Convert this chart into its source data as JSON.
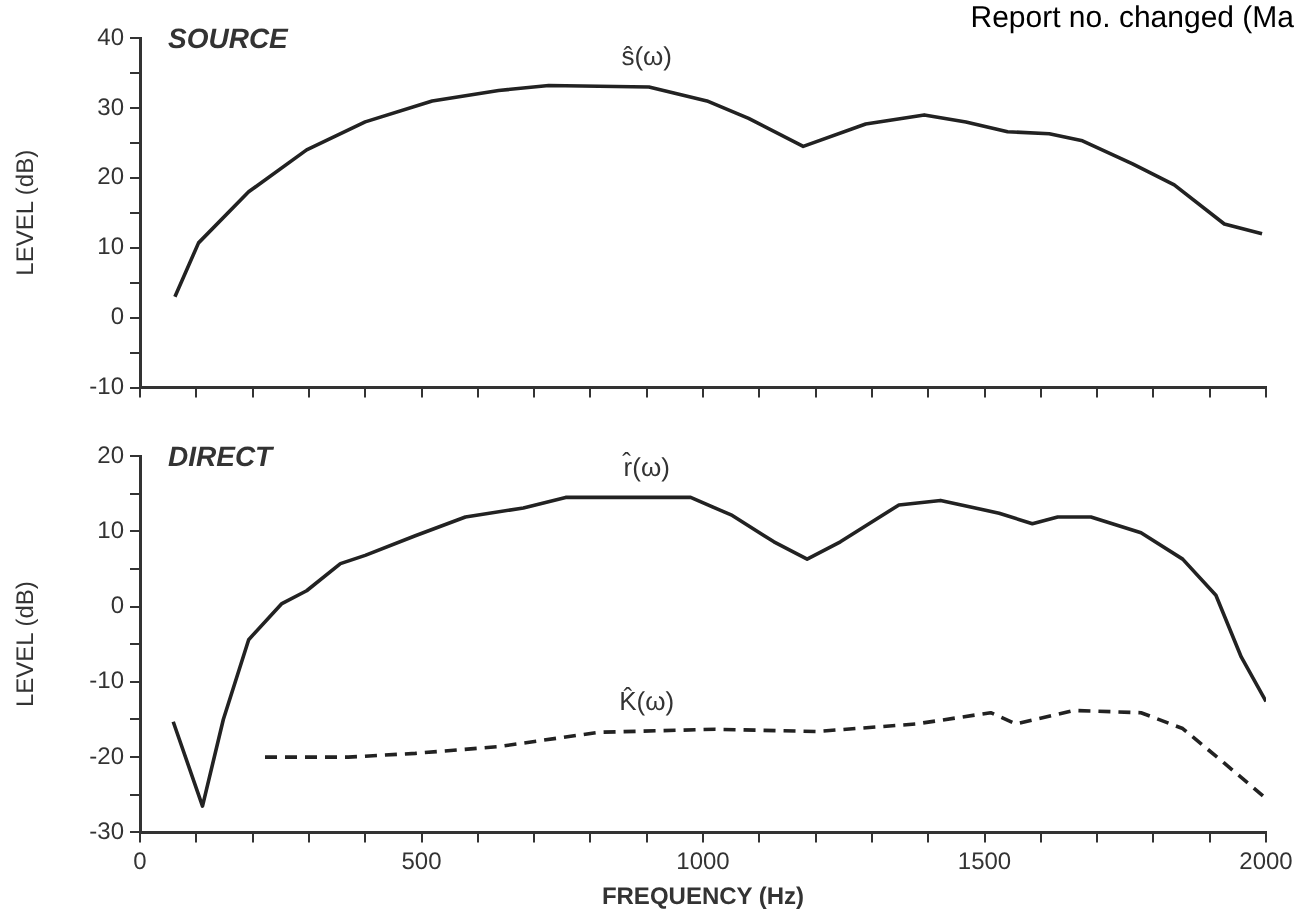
{
  "chart_data": [
    {
      "type": "line",
      "title": "SOURCE",
      "ylabel": "LEVEL (dB)",
      "annotations": [
        "Report no. changed (Ma"
      ],
      "xlim": [
        0,
        2000
      ],
      "xticks": [
        0,
        {
          "value": 100,
          "label": null
        },
        {
          "value": 200,
          "label": null
        },
        {
          "value": 300,
          "label": null
        },
        {
          "value": 400,
          "label": null
        },
        500,
        {
          "value": 600,
          "label": null
        },
        {
          "value": 700,
          "label": null
        },
        {
          "value": 800,
          "label": null
        },
        {
          "value": 900,
          "label": null
        },
        1000,
        {
          "value": 1100,
          "label": null
        },
        {
          "value": 1200,
          "label": null
        },
        {
          "value": 1300,
          "label": null
        },
        {
          "value": 1400,
          "label": null
        },
        1500,
        {
          "value": 1600,
          "label": null
        },
        {
          "value": 1700,
          "label": null
        },
        {
          "value": 1800,
          "label": null
        },
        {
          "value": 1900,
          "label": null
        },
        2000
      ],
      "ylim": [
        -10,
        40
      ],
      "yticks": [
        -10,
        {
          "value": -5,
          "label": null
        },
        0,
        {
          "value": 5,
          "label": null
        },
        10,
        {
          "value": 15,
          "label": null
        },
        20,
        {
          "value": 25,
          "label": null
        },
        30,
        {
          "value": 35,
          "label": null
        },
        40
      ],
      "tick_labels": "y",
      "marker": "none",
      "grid": false,
      "legend": false,
      "series": [
        {
          "name": "ŝ(ω)",
          "color": "#222222",
          "x": [
            62,
            104,
            193,
            296,
            400,
            519,
            637,
            726,
            904,
            1007,
            1081,
            1178,
            1289,
            1393,
            1467,
            1541,
            1615,
            1674,
            1763,
            1837,
            1926,
            1993
          ],
          "values": [
            3,
            10.7,
            18,
            24,
            28,
            31,
            32.5,
            33.2,
            33,
            31,
            28.5,
            24.5,
            27.7,
            29,
            28,
            26.6,
            26.3,
            25.3,
            22,
            19,
            13.4,
            12
          ]
        }
      ]
    },
    {
      "type": "line",
      "title": "DIRECT",
      "xlabel": "FREQUENCY (Hz)",
      "ylabel": "LEVEL (dB)",
      "xlim": [
        0,
        2000
      ],
      "xticks": [
        0,
        {
          "value": 100,
          "label": null
        },
        {
          "value": 200,
          "label": null
        },
        {
          "value": 300,
          "label": null
        },
        {
          "value": 400,
          "label": null
        },
        500,
        {
          "value": 600,
          "label": null
        },
        {
          "value": 700,
          "label": null
        },
        {
          "value": 800,
          "label": null
        },
        {
          "value": 900,
          "label": null
        },
        1000,
        {
          "value": 1100,
          "label": null
        },
        {
          "value": 1200,
          "label": null
        },
        {
          "value": 1300,
          "label": null
        },
        {
          "value": 1400,
          "label": null
        },
        1500,
        {
          "value": 1600,
          "label": null
        },
        {
          "value": 1700,
          "label": null
        },
        {
          "value": 1800,
          "label": null
        },
        {
          "value": 1900,
          "label": null
        },
        2000
      ],
      "ylim": [
        -30,
        20
      ],
      "yticks": [
        -30,
        {
          "value": -25,
          "label": null
        },
        -20,
        {
          "value": -15,
          "label": null
        },
        -10,
        {
          "value": -5,
          "label": null
        },
        0,
        {
          "value": 5,
          "label": null
        },
        10,
        {
          "value": 15,
          "label": null
        },
        20
      ],
      "marker": "none",
      "grid": false,
      "legend": false,
      "series": [
        {
          "name": "r̂(ω)",
          "color": "#222222",
          "x": [
            59,
            111,
            148,
            193,
            252,
            296,
            356,
            400,
            489,
            578,
            681,
            756,
            978,
            1052,
            1126,
            1185,
            1244,
            1348,
            1422,
            1526,
            1585,
            1630,
            1689,
            1778,
            1852,
            1911,
            1956,
            2000
          ],
          "values": [
            -15.3,
            -26.5,
            -15,
            -4.4,
            0.4,
            2.1,
            5.7,
            6.8,
            9.4,
            11.9,
            13.1,
            14.5,
            14.5,
            12.1,
            8.6,
            6.3,
            8.6,
            13.5,
            14.1,
            12.4,
            11,
            11.9,
            11.9,
            9.8,
            6.3,
            1.5,
            -6.7,
            -12.6
          ]
        },
        {
          "name": "K̂(ω)",
          "color": "#222222",
          "line_style": "dashed",
          "x": [
            222,
            370,
            489,
            637,
            815,
            1022,
            1200,
            1378,
            1511,
            1556,
            1659,
            1778,
            1852,
            1926,
            2000
          ],
          "values": [
            -20,
            -20,
            -19.5,
            -18.6,
            -16.7,
            -16.3,
            -16.6,
            -15.6,
            -14.1,
            -15.6,
            -13.8,
            -14.1,
            -16.2,
            -20.8,
            -25.5
          ]
        }
      ]
    }
  ]
}
